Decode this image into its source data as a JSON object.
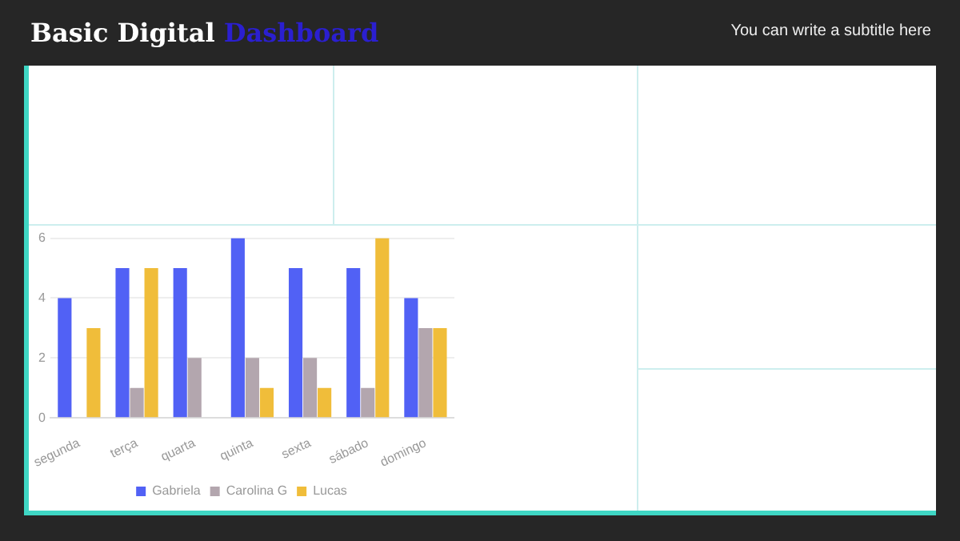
{
  "chart_data": {
    "type": "bar",
    "title": "Basic Digital Dashboard",
    "subtitle": "You can write a subtitle here",
    "categories": [
      "segunda",
      "terça",
      "quarta",
      "quinta",
      "sexta",
      "sábado",
      "domingo"
    ],
    "series": [
      {
        "name": "Gabriela",
        "color": "#5161f5",
        "values": [
          4,
          5,
          5,
          6,
          5,
          5,
          4
        ]
      },
      {
        "name": "Carolina G",
        "color": "#b3a6ae",
        "values": [
          0,
          1,
          2,
          2,
          2,
          1,
          3
        ]
      },
      {
        "name": "Lucas",
        "color": "#f0bd3a",
        "values": [
          3,
          5,
          0,
          1,
          1,
          6,
          3
        ]
      }
    ],
    "ylim": [
      0,
      6
    ],
    "yticks": [
      0,
      2,
      4,
      6
    ],
    "grid": "y",
    "legend": "bottom"
  }
}
